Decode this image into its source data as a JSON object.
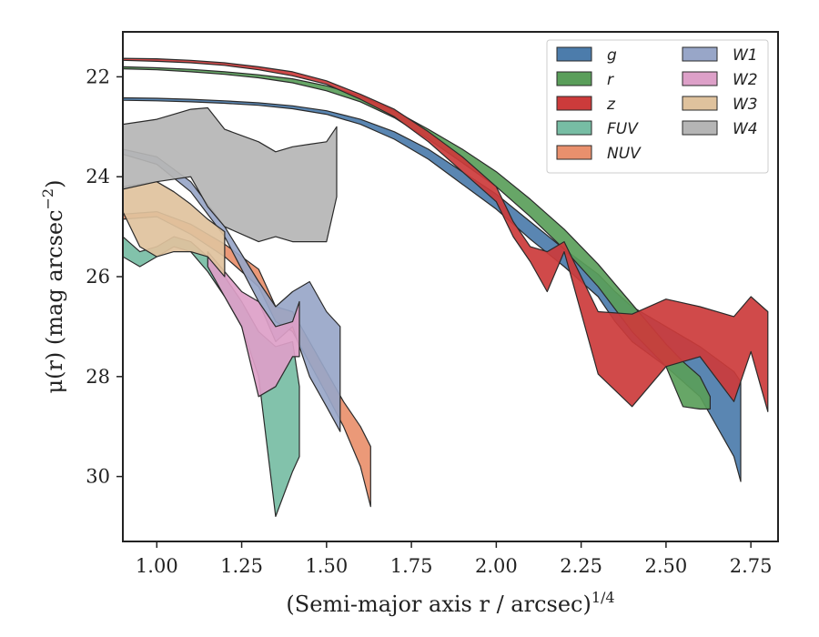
{
  "chart_data": {
    "type": "area",
    "xlabel": "(Semi-major axis r / arcsec)",
    "xlabel_superscript": "1/4",
    "ylabel": "μ(r) (mag arcsec",
    "ylabel_superscript": "−2",
    "ylabel_tail": ")",
    "xlim": [
      0.9,
      2.83
    ],
    "ylim": [
      31.3,
      21.1
    ],
    "y_inverted": true,
    "xticks": [
      1.0,
      1.25,
      1.5,
      1.75,
      2.0,
      2.25,
      2.5,
      2.75
    ],
    "xtick_labels": [
      "1.00",
      "1.25",
      "1.50",
      "1.75",
      "2.00",
      "2.25",
      "2.50",
      "2.75"
    ],
    "yticks": [
      22,
      24,
      26,
      28,
      30
    ],
    "ytick_labels": [
      "22",
      "24",
      "26",
      "28",
      "30"
    ],
    "grid": false,
    "legend_position": "top-right",
    "legend_columns": 2,
    "series": [
      {
        "name": "g",
        "color": "#4c7cab",
        "x": [
          0.9,
          1.0,
          1.1,
          1.2,
          1.3,
          1.4,
          1.5,
          1.6,
          1.7,
          1.8,
          1.9,
          2.0,
          2.1,
          2.2,
          2.3,
          2.35,
          2.4,
          2.5,
          2.6,
          2.7,
          2.72
        ],
        "y_upper": [
          22.42,
          22.43,
          22.45,
          22.48,
          22.52,
          22.58,
          22.68,
          22.85,
          23.1,
          23.45,
          23.9,
          24.35,
          24.9,
          25.45,
          25.95,
          26.3,
          26.6,
          27.0,
          27.4,
          27.9,
          28.1
        ],
        "y_lower": [
          22.47,
          22.48,
          22.5,
          22.53,
          22.57,
          22.64,
          22.75,
          22.95,
          23.25,
          23.65,
          24.15,
          24.65,
          25.25,
          25.8,
          26.4,
          26.9,
          27.3,
          27.8,
          28.4,
          29.6,
          30.1
        ]
      },
      {
        "name": "r",
        "color": "#5a9e5a",
        "x": [
          0.9,
          1.0,
          1.1,
          1.2,
          1.3,
          1.4,
          1.5,
          1.6,
          1.7,
          1.8,
          1.9,
          2.0,
          2.1,
          2.2,
          2.3,
          2.4,
          2.5,
          2.55,
          2.6,
          2.63
        ],
        "y_upper": [
          21.8,
          21.82,
          21.85,
          21.9,
          21.96,
          22.04,
          22.18,
          22.38,
          22.68,
          23.05,
          23.45,
          23.9,
          24.45,
          25.05,
          25.75,
          26.55,
          27.35,
          27.7,
          28.0,
          28.4
        ],
        "y_lower": [
          21.84,
          21.86,
          21.9,
          21.95,
          22.02,
          22.12,
          22.28,
          22.5,
          22.82,
          23.25,
          23.72,
          24.2,
          24.8,
          25.45,
          26.2,
          27.1,
          27.8,
          28.6,
          28.65,
          28.65
        ]
      },
      {
        "name": "z",
        "color": "#cc3b3b",
        "x": [
          0.9,
          1.0,
          1.1,
          1.2,
          1.3,
          1.4,
          1.5,
          1.6,
          1.7,
          1.8,
          1.9,
          2.0,
          2.05,
          2.1,
          2.15,
          2.2,
          2.3,
          2.4,
          2.5,
          2.6,
          2.7,
          2.75,
          2.8
        ],
        "y_upper": [
          21.63,
          21.64,
          21.67,
          21.72,
          21.8,
          21.9,
          22.08,
          22.35,
          22.65,
          23.1,
          23.6,
          24.2,
          24.9,
          25.4,
          25.5,
          25.3,
          26.7,
          26.75,
          26.45,
          26.6,
          26.8,
          26.4,
          26.7
        ],
        "y_lower": [
          21.67,
          21.69,
          21.72,
          21.77,
          21.86,
          21.98,
          22.15,
          22.45,
          22.8,
          23.3,
          23.9,
          24.5,
          25.2,
          25.7,
          26.3,
          25.5,
          27.95,
          28.6,
          27.8,
          27.6,
          28.5,
          27.5,
          28.7
        ]
      },
      {
        "name": "FUV",
        "color": "#77bda4",
        "x": [
          0.9,
          0.95,
          1.0,
          1.05,
          1.1,
          1.15,
          1.2,
          1.25,
          1.3,
          1.35,
          1.4,
          1.42
        ],
        "y_upper": [
          25.2,
          25.5,
          25.4,
          25.2,
          25.3,
          25.6,
          26.0,
          26.5,
          27.1,
          27.4,
          27.3,
          28.2
        ],
        "y_lower": [
          25.6,
          25.8,
          25.6,
          25.4,
          25.5,
          25.9,
          26.4,
          27.0,
          28.0,
          30.8,
          29.9,
          29.6
        ]
      },
      {
        "name": "NUV",
        "color": "#e9906d",
        "x": [
          0.9,
          1.0,
          1.1,
          1.2,
          1.3,
          1.35,
          1.4,
          1.5,
          1.55,
          1.6,
          1.63
        ],
        "y_upper": [
          24.75,
          24.7,
          24.95,
          25.35,
          25.85,
          26.6,
          26.7,
          27.9,
          28.5,
          29.0,
          29.4
        ],
        "y_lower": [
          24.85,
          24.8,
          25.15,
          25.6,
          26.2,
          26.9,
          27.1,
          28.35,
          29.0,
          29.8,
          30.6
        ]
      },
      {
        "name": "W1",
        "color": "#98a6c8",
        "x": [
          0.9,
          1.0,
          1.1,
          1.2,
          1.3,
          1.35,
          1.4,
          1.45,
          1.5,
          1.54
        ],
        "y_upper": [
          23.45,
          23.6,
          24.1,
          25.0,
          26.1,
          26.6,
          26.3,
          26.1,
          26.7,
          27.0
        ],
        "y_lower": [
          23.55,
          23.75,
          24.3,
          25.2,
          26.5,
          27.3,
          27.0,
          28.0,
          28.6,
          29.1
        ]
      },
      {
        "name": "W2",
        "color": "#dda0c8",
        "x": [
          1.15,
          1.2,
          1.25,
          1.3,
          1.35,
          1.4,
          1.42
        ],
        "y_upper": [
          25.5,
          25.9,
          26.3,
          26.5,
          27.0,
          26.9,
          26.5
        ],
        "y_lower": [
          25.8,
          26.4,
          27.0,
          28.4,
          28.2,
          27.6,
          27.6
        ]
      },
      {
        "name": "W3",
        "color": "#dfc29d",
        "x": [
          0.9,
          0.95,
          1.0,
          1.05,
          1.1,
          1.15,
          1.2
        ],
        "y_upper": [
          24.2,
          24.15,
          24.1,
          24.3,
          24.55,
          24.85,
          25.1
        ],
        "y_lower": [
          24.7,
          25.4,
          25.6,
          25.5,
          25.5,
          25.6,
          26.0
        ]
      },
      {
        "name": "W4",
        "color": "#b5b5b5",
        "x": [
          0.9,
          1.0,
          1.1,
          1.15,
          1.2,
          1.3,
          1.35,
          1.4,
          1.45,
          1.5,
          1.53
        ],
        "y_upper": [
          22.95,
          22.85,
          22.65,
          22.62,
          23.05,
          23.3,
          23.5,
          23.4,
          23.35,
          23.3,
          23.0
        ],
        "y_lower": [
          24.25,
          24.1,
          24.0,
          24.6,
          25.0,
          25.3,
          25.2,
          25.3,
          25.3,
          25.3,
          24.4
        ]
      }
    ]
  }
}
